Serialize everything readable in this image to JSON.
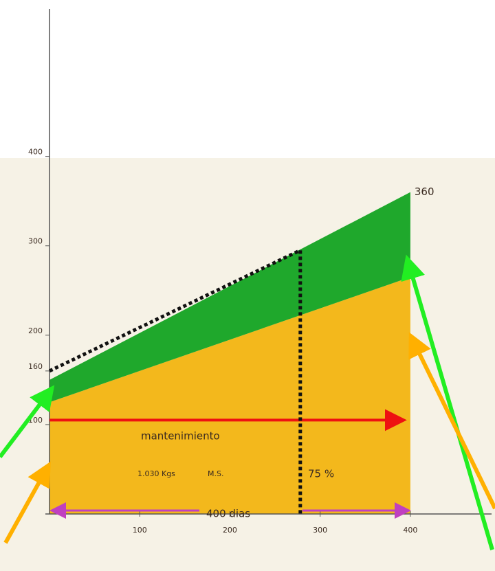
{
  "chart_data": {
    "type": "area",
    "x": [
      0,
      400
    ],
    "series": [
      {
        "color": "#f3b81c",
        "values": [
          125,
          265
        ]
      },
      {
        "color": "#1fa82c",
        "values": [
          25,
          95
        ]
      }
    ],
    "top_label": "360",
    "xlim": [
      0,
      490
    ],
    "ylim": [
      0,
      565
    ],
    "xticks": [
      100,
      200,
      300,
      400
    ],
    "yticks": [
      100,
      160,
      200,
      300,
      400
    ],
    "guide": {
      "x": [
        0,
        278,
        278
      ],
      "y": [
        160,
        295,
        0
      ],
      "color": "#111111"
    },
    "maintenance": {
      "x": [
        0,
        390
      ],
      "y": [
        105,
        105
      ],
      "color": "#ee1111"
    },
    "annotations": [
      "mantenimiento",
      "1.030 Kgs",
      "M.S.",
      "75 %",
      "400 dias"
    ]
  }
}
